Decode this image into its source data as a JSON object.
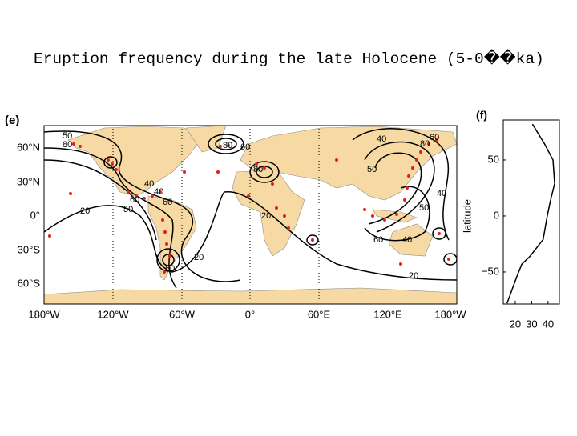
{
  "title": "Eruption frequency during the late Holocene (5-0��ka)",
  "map": {
    "label": "(e)",
    "lat_labels": [
      "60°N",
      "30°N",
      "0°",
      "30°S",
      "60°S"
    ],
    "lon_labels": [
      "180°W",
      "120°W",
      "60°W",
      "0°",
      "60°E",
      "120°E",
      "180°W"
    ],
    "contour_labels": [
      "50",
      "80",
      "80",
      "60",
      "40",
      "60",
      "50",
      "20",
      "40",
      "60",
      "20",
      "40",
      "80",
      "60",
      "50",
      "40",
      "50",
      "60",
      "40",
      "20",
      "20",
      "80",
      "60"
    ]
  },
  "chart_data": {
    "type": "line",
    "label": "(f)",
    "ylabel": "latitude",
    "xlim": [
      12.7,
      46.9
    ],
    "ylim": [
      -78.6,
      85.7
    ],
    "xticks": [
      20,
      30,
      40
    ],
    "yticks": [
      50,
      0,
      {
        "value": -50,
        "label": "−50"
      }
    ],
    "y": [
      82,
      64,
      50,
      29,
      14,
      0,
      -21,
      -36,
      -43,
      -54,
      -68,
      -78
    ],
    "series": [
      {
        "color": "#000000",
        "values": [
          30.5,
          38,
          43,
          44,
          41.5,
          39.5,
          37,
          29,
          24,
          21,
          17.5,
          15
        ]
      }
    ]
  }
}
